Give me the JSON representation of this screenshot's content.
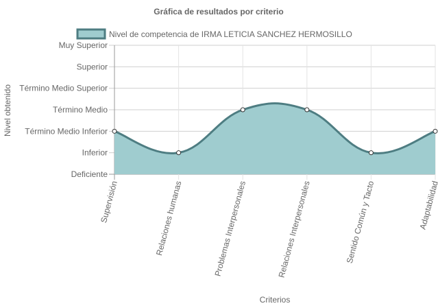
{
  "chart_data": {
    "type": "area",
    "title": "Gráfica de resultados por criterio",
    "xlabel": "Criterios",
    "ylabel": "Nivel obtenido",
    "categories": [
      "Supervisión",
      "Relaciones humanas",
      "Problemas Interpersonales",
      "Relaciones Interpersonales",
      "Sentido Común y Tacto",
      "Adaptabilidad"
    ],
    "y_levels": [
      "Deficiente",
      "Inferior",
      "Término Medio Inferior",
      "Término Medio",
      "Término Medio Superior",
      "Superior",
      "Muy Superior"
    ],
    "ylim": [
      0,
      6
    ],
    "grid": true,
    "legend_position": "top",
    "series": [
      {
        "name": "Nivel de competencia de IRMA LETICIA SANCHEZ HERMOSILLO",
        "values": [
          2,
          1,
          3,
          3,
          1,
          2
        ],
        "border_color": "#4e7d82",
        "fill_color": "#9fcccf"
      }
    ]
  }
}
